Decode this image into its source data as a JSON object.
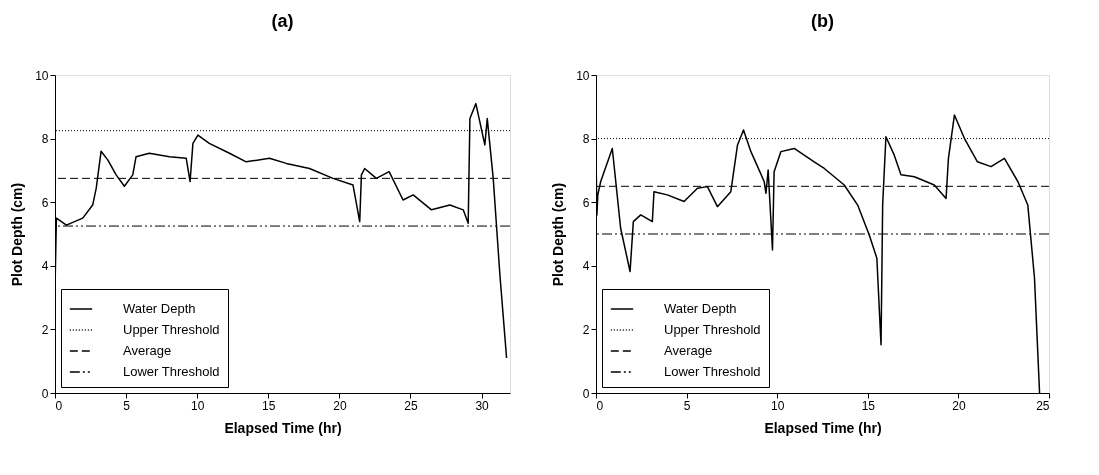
{
  "chart_data": [
    {
      "type": "line",
      "title": "(a)",
      "xlabel": "Elapsed Time (hr)",
      "ylabel": "Plot Depth (cm)",
      "xlim": [
        0,
        32
      ],
      "xticks": [
        0,
        5,
        10,
        15,
        20,
        25,
        30
      ],
      "ylim": [
        0,
        10
      ],
      "yticks": [
        0,
        2,
        4,
        6,
        8,
        10
      ],
      "grid": false,
      "legend": "bottom left",
      "line_style": "solid",
      "marker": "none",
      "series": [
        {
          "name": "Water Depth",
          "color": "#000000",
          "x": [
            0,
            0.1,
            0.8,
            1.95,
            2.65,
            2.9,
            3.24,
            3.71,
            4.3,
            4.88,
            5.47,
            5.7,
            6.63,
            8.05,
            9.23,
            9.5,
            9.7,
            10.05,
            10.85,
            12.27,
            13.45,
            15.08,
            16.27,
            17.9,
            19.55,
            20.96,
            21.43,
            21.55,
            21.78,
            22.6,
            23.5,
            24.48,
            25.19,
            26.48,
            27.77,
            28.71,
            29.06,
            29.18,
            29.6,
            30.23,
            30.4,
            30.82,
            31.29,
            31.76
          ],
          "values": [
            3.3,
            5.5,
            5.28,
            5.5,
            5.91,
            6.44,
            7.6,
            7.33,
            6.86,
            6.5,
            6.86,
            7.43,
            7.54,
            7.43,
            7.38,
            6.65,
            7.85,
            8.11,
            7.85,
            7.54,
            7.27,
            7.38,
            7.22,
            7.06,
            6.75,
            6.54,
            5.39,
            6.86,
            7.06,
            6.75,
            6.96,
            6.07,
            6.23,
            5.76,
            5.91,
            5.76,
            5.34,
            8.63,
            9.1,
            7.8,
            8.63,
            6.75,
            3.71,
            1.1
          ]
        }
      ],
      "ref_lines": [
        {
          "axis": "y",
          "value": 8.25,
          "label": "Upper Threshold",
          "color": "#000000",
          "line_style": "dotted"
        },
        {
          "axis": "y",
          "value": 6.75,
          "label": "Average",
          "color": "#000000",
          "line_style": "dashed"
        },
        {
          "axis": "y",
          "value": 5.25,
          "label": "Lower Threshold",
          "color": "#000000",
          "line_style": "dashdot"
        }
      ]
    },
    {
      "type": "line",
      "title": "(b)",
      "xlabel": "Elapsed Time (hr)",
      "ylabel": "Plot Depth (cm)",
      "xlim": [
        0,
        25
      ],
      "xticks": [
        0,
        5,
        10,
        15,
        20,
        25
      ],
      "ylim": [
        0,
        10
      ],
      "yticks": [
        0,
        2,
        4,
        6,
        8,
        10
      ],
      "grid": false,
      "legend": "bottom left",
      "line_style": "solid",
      "marker": "none",
      "series": [
        {
          "name": "Water Depth",
          "color": "#000000",
          "x": [
            0,
            0.05,
            0.1,
            0.26,
            0.9,
            1.36,
            1.88,
            2.06,
            2.47,
            3.11,
            3.2,
            3.94,
            4.86,
            5.6,
            6.15,
            6.7,
            7.44,
            7.81,
            8.14,
            8.55,
            9.28,
            9.38,
            9.5,
            9.74,
            9.83,
            10.2,
            10.94,
            12.04,
            12.6,
            13.7,
            14.44,
            15.08,
            15.5,
            15.73,
            15.82,
            16.0,
            16.46,
            16.83,
            17.57,
            18.67,
            19.32,
            19.45,
            19.78,
            20.33,
            21.05,
            21.8,
            22.54,
            23.28,
            23.83,
            24.2,
            24.48
          ],
          "values": [
            7.48,
            5.6,
            6.23,
            6.65,
            7.69,
            5.18,
            3.82,
            5.39,
            5.6,
            5.39,
            6.33,
            6.23,
            6.02,
            6.44,
            6.49,
            5.86,
            6.33,
            7.8,
            8.27,
            7.59,
            6.65,
            6.28,
            7.01,
            4.5,
            6.96,
            7.59,
            7.69,
            7.27,
            7.06,
            6.54,
            5.91,
            4.97,
            4.24,
            1.52,
            5.91,
            8.06,
            7.48,
            6.86,
            6.8,
            6.54,
            6.12,
            7.38,
            8.74,
            8.01,
            7.27,
            7.12,
            7.38,
            6.65,
            5.91,
            3.61,
            0
          ]
        }
      ],
      "ref_lines": [
        {
          "axis": "y",
          "value": 8,
          "label": "Upper Threshold",
          "color": "#000000",
          "line_style": "dotted"
        },
        {
          "axis": "y",
          "value": 6.5,
          "label": "Average",
          "color": "#000000",
          "line_style": "dashed"
        },
        {
          "axis": "y",
          "value": 5,
          "label": "Lower Threshold",
          "color": "#000000",
          "line_style": "dashdot"
        }
      ]
    }
  ]
}
